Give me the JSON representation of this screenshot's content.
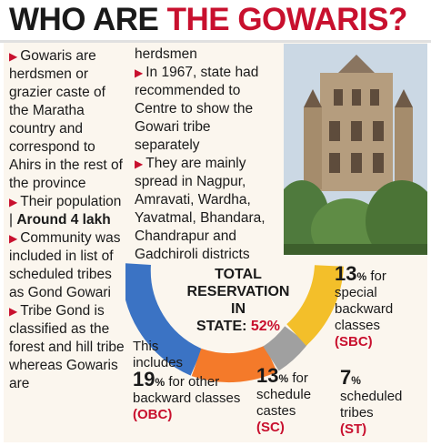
{
  "title": {
    "part1": "WHO ARE",
    "part2": "THE GOWARIS?"
  },
  "col1": {
    "b1": "Gowaris are herdsmen or grazier caste of the Maratha country and correspond to Ahirs in the rest of the province",
    "b2_a": "Their population |",
    "b2_b": "Around 4 lakh",
    "b3": "Community was included in list of scheduled tribes as Gond Gowari",
    "b4": "Tribe Gond is classified as the forest and hill tribe whereas Gowaris are"
  },
  "col2": {
    "cont": "herdsmen",
    "b1": "In 1967, state had recommended to Centre to show the Gowari tribe separately",
    "b2": "They are mainly spread in Nagpur, Amravati, Wardha, Yavatmal, Bhandara, Chandrapur and Gadchiroli districts"
  },
  "reservation": {
    "center_l1": "TOTAL",
    "center_l2": "RESERVATION IN",
    "center_l3": "STATE:",
    "center_pct": "52%",
    "obc_pre1": "This",
    "obc_pre2": "includes",
    "obc_num": "19",
    "obc_unit": "%",
    "obc_text": "for other backward classes",
    "obc_tag": "(OBC)",
    "sc_num": "13",
    "sc_unit": "%",
    "sc_text1": "for",
    "sc_text2": "schedule castes",
    "sc_tag": "(SC)",
    "st_num": "7",
    "st_unit": "%",
    "st_text": "scheduled tribes",
    "st_tag": "(ST)",
    "sbc_num": "13",
    "sbc_unit": "%",
    "sbc_text1": "for",
    "sbc_text2": "special backward classes",
    "sbc_tag": "(SBC)",
    "colors": {
      "obc": "#3b73c4",
      "sc": "#f47a2a",
      "st": "#a0a0a0",
      "sbc": "#f3bf2a"
    }
  }
}
